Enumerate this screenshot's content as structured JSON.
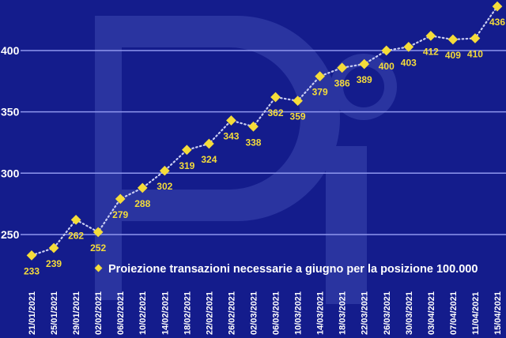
{
  "colors": {
    "background": "#141c8c",
    "watermark": "#2a34a0",
    "gridline": "#8f97ee",
    "series": "#f5dc3a",
    "line_dots": "#c9cdf3",
    "text": "#ffffff"
  },
  "legend": {
    "label": "Proiezione transazioni necessarie a giugno per la posizione 100.000",
    "marker": "diamond"
  },
  "watermark": {
    "text": "Pi"
  },
  "chart_data": {
    "type": "line",
    "title": "",
    "xlabel": "",
    "ylabel": "",
    "ylim": [
      215,
      440
    ],
    "yticks": [
      250,
      300,
      350,
      400
    ],
    "grid": true,
    "legend_position": "lower-center",
    "categories": [
      "21/01/2021",
      "25/01/2021",
      "29/01/2021",
      "02/02/2021",
      "06/02/2021",
      "10/02/2021",
      "14/02/2021",
      "18/02/2021",
      "22/02/2021",
      "26/02/2021",
      "02/03/2021",
      "06/03/2021",
      "10/03/2021",
      "14/03/2021",
      "18/03/2021",
      "22/03/2021",
      "26/03/2021",
      "30/03/2021",
      "03/04/2021",
      "07/04/2021",
      "11/04/2021",
      "15/04/2021"
    ],
    "series": [
      {
        "name": "Proiezione transazioni necessarie a giugno per la posizione 100.000",
        "values": [
          233,
          239,
          262,
          252,
          279,
          288,
          302,
          319,
          324,
          343,
          338,
          362,
          359,
          379,
          386,
          389,
          400,
          403,
          412,
          409,
          410,
          436
        ]
      }
    ]
  }
}
